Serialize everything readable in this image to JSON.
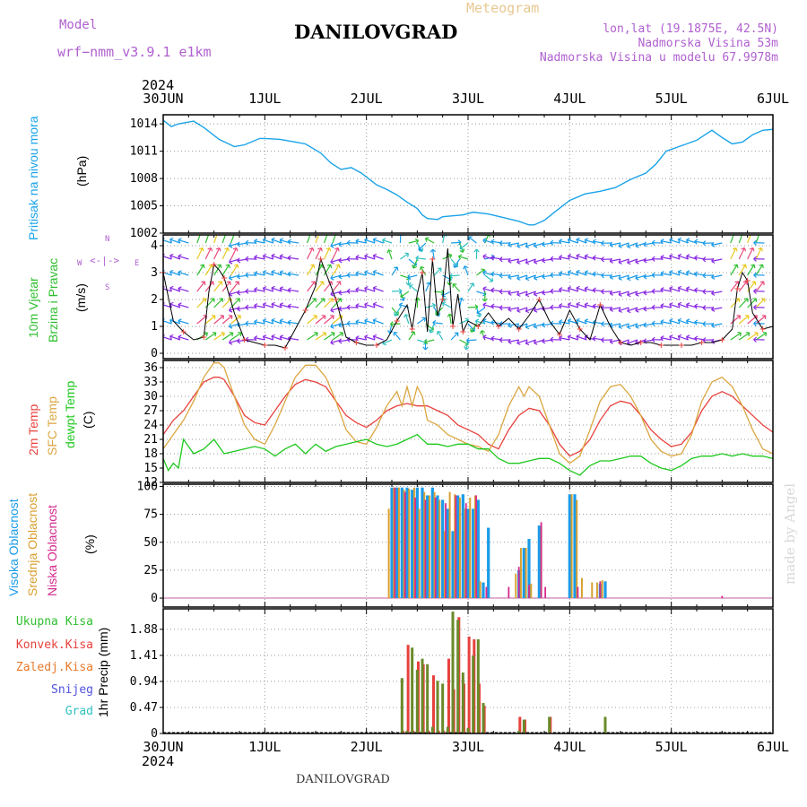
{
  "header": {
    "model_label": "Model",
    "model_name": "wrf−nmm_v3.9.1  e1km",
    "title": "DANILOVGRAD",
    "subtitle": "Meteogram",
    "coords": "lon,lat (19.1875E, 42.5N)",
    "elevation": "Nadmorska Visina 53m",
    "model_elevation": "Nadmorska Visina u modelu 67.9978m",
    "footer_title": "DANILOVGRAD",
    "credit": "made by Angel"
  },
  "colors": {
    "pressure": "#1aa3e8",
    "temp2m": "#e8413c",
    "sfctemp": "#dba640",
    "dewpt": "#1ec81e",
    "high_cloud": "#1a9be8",
    "mid_cloud": "#d9a030",
    "low_cloud": "#d42a8c",
    "total_precip": "#2fbf2f",
    "conv_precip": "#e8413c",
    "frz_precip": "#e87a2a",
    "snow": "#5050e0",
    "hail": "#30c0c0"
  },
  "time_axis": {
    "year": "2024",
    "days": [
      "30JUN",
      "1JUL",
      "2JUL",
      "3JUL",
      "4JUL",
      "5JUL",
      "6JUL"
    ]
  },
  "chart_data": [
    {
      "type": "line",
      "panel": "pressure",
      "ylabel": "Pritisak na nivou mora",
      "unit": "(hPa)",
      "ylim": [
        1002,
        1015
      ],
      "yticks": [
        "1014",
        "1011",
        "1008",
        "1005",
        "1002"
      ],
      "series": [
        {
          "name": "Pritisak na nivou mora",
          "color": "#1aa3e8",
          "x": [
            0,
            0.08,
            0.15,
            0.3,
            0.4,
            0.55,
            0.7,
            0.8,
            0.95,
            1.0,
            1.15,
            1.3,
            1.4,
            1.55,
            1.65,
            1.75,
            1.85,
            1.95,
            2.1,
            2.2,
            2.3,
            2.4,
            2.5,
            2.55,
            2.6,
            2.7,
            2.75,
            2.85,
            2.95,
            3.05,
            3.2,
            3.35,
            3.5,
            3.6,
            3.65,
            3.75,
            3.85,
            4.0,
            4.15,
            4.3,
            4.45,
            4.6,
            4.75,
            4.85,
            4.95,
            5.1,
            5.25,
            5.4,
            5.5,
            5.6,
            5.7,
            5.8,
            5.9,
            6.0
          ],
          "values": [
            1014.4,
            1013.7,
            1014.0,
            1014.3,
            1013.6,
            1012.3,
            1011.5,
            1011.7,
            1012.4,
            1012.4,
            1012.3,
            1012.0,
            1011.8,
            1010.8,
            1009.7,
            1009.0,
            1009.2,
            1008.6,
            1007.3,
            1006.8,
            1006.2,
            1005.4,
            1004.7,
            1004.0,
            1003.6,
            1003.5,
            1003.8,
            1003.9,
            1004.0,
            1004.3,
            1004.1,
            1003.7,
            1003.3,
            1002.9,
            1002.9,
            1003.4,
            1004.3,
            1005.6,
            1006.3,
            1006.6,
            1007.0,
            1007.9,
            1008.6,
            1009.6,
            1011.0,
            1011.6,
            1012.2,
            1013.3,
            1012.5,
            1011.8,
            1012.0,
            1012.8,
            1013.3,
            1013.4
          ]
        }
      ]
    },
    {
      "type": "line",
      "panel": "wind",
      "ylabel": "10m Vjetar Brzina i Pravac",
      "unit": "(m/s)",
      "compass": {
        "n": "N",
        "w": "W",
        "e": "E",
        "s": "S"
      },
      "ylim": [
        0,
        4.3
      ],
      "yticks": [
        "4",
        "3",
        "2",
        "1",
        "0"
      ],
      "series": [
        {
          "name": "10m Vjetar Brzina",
          "x": [
            0,
            0.1,
            0.2,
            0.3,
            0.4,
            0.45,
            0.5,
            0.55,
            0.6,
            0.7,
            0.8,
            0.9,
            1.0,
            1.1,
            1.2,
            1.3,
            1.4,
            1.5,
            1.55,
            1.6,
            1.7,
            1.8,
            1.9,
            2.0,
            2.1,
            2.2,
            2.3,
            2.4,
            2.45,
            2.5,
            2.55,
            2.6,
            2.65,
            2.7,
            2.75,
            2.8,
            2.85,
            2.9,
            2.95,
            3.0,
            3.1,
            3.2,
            3.3,
            3.4,
            3.5,
            3.6,
            3.7,
            3.8,
            3.9,
            4.0,
            4.1,
            4.2,
            4.3,
            4.4,
            4.5,
            4.6,
            4.7,
            4.8,
            4.9,
            5.0,
            5.1,
            5.2,
            5.3,
            5.4,
            5.5,
            5.6,
            5.65,
            5.7,
            5.75,
            5.8,
            5.9,
            6.0
          ],
          "values": [
            3.0,
            1.2,
            0.8,
            0.5,
            0.6,
            2.3,
            3.3,
            3.1,
            2.8,
            1.5,
            0.5,
            0.4,
            0.3,
            0.3,
            0.2,
            0.9,
            1.6,
            2.5,
            3.5,
            3.0,
            2.0,
            0.6,
            0.4,
            0.3,
            0.3,
            0.5,
            1.2,
            1.8,
            0.9,
            2.2,
            3.0,
            0.8,
            3.5,
            1.4,
            2.0,
            3.9,
            1.0,
            2.2,
            0.8,
            1.2,
            1.0,
            1.5,
            1.0,
            1.3,
            0.9,
            1.4,
            2.0,
            1.2,
            0.7,
            1.6,
            0.9,
            0.5,
            1.8,
            1.0,
            0.4,
            0.3,
            0.4,
            0.4,
            0.3,
            0.3,
            0.3,
            0.3,
            0.4,
            0.4,
            0.5,
            0.9,
            2.4,
            3.0,
            2.7,
            1.5,
            0.9,
            1.0
          ]
        }
      ]
    },
    {
      "type": "line",
      "panel": "temperature",
      "ylabel": "2m Temp / SFC Temp / dewpt Temp",
      "unit": "(C)",
      "ylim": [
        12,
        37
      ],
      "yticks": [
        "36",
        "33",
        "30",
        "27",
        "24",
        "21",
        "18",
        "15",
        "12"
      ],
      "series": [
        {
          "name": "2m Temp",
          "color": "#e8413c",
          "x": [
            0,
            0.1,
            0.2,
            0.3,
            0.4,
            0.5,
            0.55,
            0.6,
            0.7,
            0.8,
            0.9,
            1.0,
            1.1,
            1.2,
            1.3,
            1.4,
            1.5,
            1.6,
            1.7,
            1.8,
            1.9,
            2.0,
            2.1,
            2.2,
            2.3,
            2.4,
            2.5,
            2.6,
            2.7,
            2.8,
            2.9,
            3.0,
            3.1,
            3.2,
            3.3,
            3.4,
            3.5,
            3.6,
            3.7,
            3.8,
            3.9,
            4.0,
            4.1,
            4.2,
            4.3,
            4.4,
            4.5,
            4.6,
            4.7,
            4.8,
            4.9,
            5.0,
            5.1,
            5.2,
            5.3,
            5.4,
            5.5,
            5.6,
            5.7,
            5.8,
            5.9,
            6.0
          ],
          "values": [
            22,
            25,
            27,
            30,
            33,
            34,
            34,
            33.5,
            30,
            26,
            24.5,
            24,
            27,
            30,
            32.5,
            33.5,
            33,
            32,
            29,
            26,
            24.5,
            23.5,
            25,
            27,
            28,
            28.5,
            28,
            28,
            27,
            26,
            24,
            23,
            22,
            20,
            19,
            23,
            26,
            27.5,
            27,
            24,
            20,
            17.5,
            18.5,
            21,
            25,
            28,
            29,
            28.5,
            26,
            23,
            21,
            19.5,
            20,
            22.5,
            27,
            30,
            31,
            30,
            28,
            26,
            24,
            22.5
          ]
        },
        {
          "name": "SFC Temp",
          "color": "#dba640",
          "x": [
            0,
            0.1,
            0.2,
            0.3,
            0.4,
            0.5,
            0.55,
            0.6,
            0.7,
            0.8,
            0.9,
            1.0,
            1.1,
            1.2,
            1.3,
            1.4,
            1.5,
            1.6,
            1.7,
            1.8,
            1.9,
            2.0,
            2.1,
            2.2,
            2.3,
            2.35,
            2.4,
            2.45,
            2.5,
            2.55,
            2.6,
            2.7,
            2.8,
            2.9,
            3.0,
            3.1,
            3.2,
            3.3,
            3.4,
            3.5,
            3.55,
            3.6,
            3.7,
            3.8,
            3.9,
            4.0,
            4.1,
            4.2,
            4.3,
            4.4,
            4.5,
            4.6,
            4.7,
            4.8,
            4.9,
            5.0,
            5.1,
            5.2,
            5.3,
            5.4,
            5.5,
            5.6,
            5.7,
            5.8,
            5.9,
            6.0
          ],
          "values": [
            19,
            22,
            25,
            29,
            34,
            37,
            37,
            36,
            30,
            24,
            21,
            20,
            24,
            29,
            34,
            36.5,
            36.5,
            34,
            29,
            23,
            20.5,
            20,
            23.5,
            28,
            31,
            28,
            32,
            28,
            32,
            30,
            25,
            24,
            22,
            21,
            20,
            19.5,
            18.5,
            22,
            28,
            32,
            30,
            32,
            30,
            24,
            18,
            16,
            17.5,
            23,
            29,
            32,
            32.5,
            30,
            26,
            21,
            18.5,
            17.5,
            18,
            22,
            29,
            33,
            34,
            32,
            28,
            23,
            19,
            18
          ]
        },
        {
          "name": "dewpt Temp",
          "color": "#1ec81e",
          "x": [
            0,
            0.05,
            0.1,
            0.15,
            0.2,
            0.3,
            0.4,
            0.5,
            0.6,
            0.7,
            0.8,
            0.9,
            1.0,
            1.1,
            1.2,
            1.3,
            1.4,
            1.5,
            1.6,
            1.7,
            1.8,
            1.9,
            2.0,
            2.1,
            2.2,
            2.3,
            2.4,
            2.5,
            2.6,
            2.7,
            2.8,
            2.9,
            3.0,
            3.1,
            3.2,
            3.3,
            3.4,
            3.5,
            3.6,
            3.7,
            3.8,
            3.9,
            4.0,
            4.1,
            4.2,
            4.3,
            4.4,
            4.5,
            4.6,
            4.7,
            4.8,
            4.9,
            5.0,
            5.1,
            5.2,
            5.3,
            5.4,
            5.5,
            5.6,
            5.7,
            5.8,
            5.9,
            6.0
          ],
          "values": [
            17,
            14.5,
            16,
            15,
            21,
            18,
            19,
            21,
            18,
            18.5,
            19,
            19.5,
            19,
            17.5,
            19,
            20,
            18,
            20,
            18.5,
            19.5,
            20,
            20.5,
            21,
            20,
            19.5,
            20,
            21,
            22,
            20,
            20,
            19.5,
            20,
            20,
            19,
            19,
            17,
            16,
            16,
            16.5,
            17,
            17,
            16,
            14.5,
            13.5,
            15.5,
            16.5,
            16.5,
            17,
            17.5,
            17.5,
            16,
            15,
            14.5,
            15.5,
            17,
            17.5,
            17.5,
            18,
            17.5,
            18,
            17.5,
            17.5,
            17
          ]
        }
      ]
    },
    {
      "type": "bar",
      "panel": "cloud",
      "ylabel": "Visoka Oblacnost / Srednja Oblacnost / Niska Oblacnost",
      "unit": "(%)",
      "ylim": [
        0,
        100
      ],
      "yticks": [
        "100",
        "75",
        "50",
        "25",
        "0"
      ],
      "series": [
        {
          "name": "Visoka Oblacnost",
          "color": "#1a9be8",
          "x": [
            2.25,
            2.3,
            2.35,
            2.4,
            2.45,
            2.5,
            2.55,
            2.6,
            2.65,
            2.7,
            2.75,
            2.8,
            2.85,
            2.9,
            2.95,
            3.0,
            3.05,
            3.1,
            3.15,
            3.2,
            3.5,
            3.55,
            3.6,
            3.7,
            4.0,
            4.05,
            4.3,
            4.35
          ],
          "values": [
            99,
            99,
            99,
            99,
            97,
            99,
            99,
            92,
            99,
            92,
            88,
            80,
            60,
            92,
            93,
            80,
            80,
            88,
            14,
            63,
            25,
            45,
            53,
            65,
            93,
            93,
            13,
            15
          ]
        },
        {
          "name": "Srednja Oblacnost",
          "color": "#d9a030",
          "x": [
            2.22,
            2.27,
            2.32,
            2.37,
            2.42,
            2.47,
            2.52,
            2.57,
            2.62,
            2.67,
            2.72,
            2.77,
            2.82,
            2.87,
            2.92,
            2.97,
            3.02,
            3.07,
            3.12,
            3.47,
            3.52,
            3.57,
            3.62,
            3.72,
            4.02,
            4.07,
            4.12,
            4.22,
            4.27,
            4.32
          ],
          "values": [
            80,
            99,
            99,
            97,
            98,
            99,
            80,
            95,
            92,
            95,
            88,
            60,
            95,
            93,
            90,
            80,
            90,
            92,
            15,
            22,
            45,
            45,
            13,
            65,
            93,
            88,
            18,
            14,
            14,
            16
          ]
        },
        {
          "name": "Niska Oblacnost",
          "color": "#d42a8c",
          "x": [
            2.28,
            2.38,
            2.48,
            2.58,
            2.68,
            2.78,
            2.88,
            2.98,
            3.08,
            3.18,
            3.4,
            3.5,
            3.6,
            3.72,
            3.76,
            4.08,
            4.3,
            5.5
          ],
          "values": [
            99,
            95,
            90,
            88,
            90,
            85,
            92,
            85,
            92,
            10,
            10,
            28,
            12,
            68,
            10,
            10,
            15,
            2
          ]
        }
      ]
    },
    {
      "type": "bar",
      "panel": "precip",
      "ylabel": "1hr Precip",
      "unit": "(mm)",
      "ylim": [
        0,
        2.2
      ],
      "yticks": [
        "1.88",
        "1.41",
        "0.94",
        "0.47",
        "0"
      ],
      "legend": [
        "Ukupna Kisa",
        "Konvek.Kisa",
        "Zaledj.Kisa",
        "Snijeg",
        "Grad"
      ],
      "series": [
        {
          "name": "Ukupna Kisa",
          "color": "#2fbf2f",
          "x": [
            2.35,
            2.4,
            2.45,
            2.5,
            2.55,
            2.6,
            2.65,
            2.7,
            2.75,
            2.8,
            2.85,
            2.9,
            2.95,
            3.0,
            3.05,
            3.1,
            3.15,
            3.5,
            3.55,
            3.8,
            4.35
          ],
          "values": [
            1.0,
            0.05,
            1.55,
            1.15,
            1.35,
            1.25,
            0.12,
            0.95,
            0.9,
            0.12,
            2.2,
            2.05,
            1.1,
            0.1,
            1.4,
            1.7,
            0.55,
            0.05,
            0.25,
            0.3,
            0.3
          ]
        },
        {
          "name": "Konvek.Kisa",
          "color": "#e8413c",
          "x": [
            2.36,
            2.41,
            2.46,
            2.51,
            2.56,
            2.61,
            2.66,
            2.71,
            2.76,
            2.81,
            2.86,
            2.91,
            2.96,
            3.01,
            3.06,
            3.11,
            3.16,
            3.51,
            3.56,
            3.81
          ],
          "values": [
            0.05,
            1.6,
            0.05,
            1.3,
            1.25,
            0.05,
            1.05,
            0.05,
            0.05,
            1.35,
            0.8,
            2.1,
            0.9,
            1.75,
            1.7,
            0.9,
            0.5,
            0.3,
            0.25,
            0.3
          ]
        },
        {
          "name": "Zaledj.Kisa",
          "color": "#e87a2a",
          "x": [],
          "values": []
        },
        {
          "name": "Snijeg",
          "color": "#5050e0",
          "x": [],
          "values": []
        },
        {
          "name": "Grad",
          "color": "#30c0c0",
          "x": [],
          "values": []
        }
      ]
    }
  ]
}
